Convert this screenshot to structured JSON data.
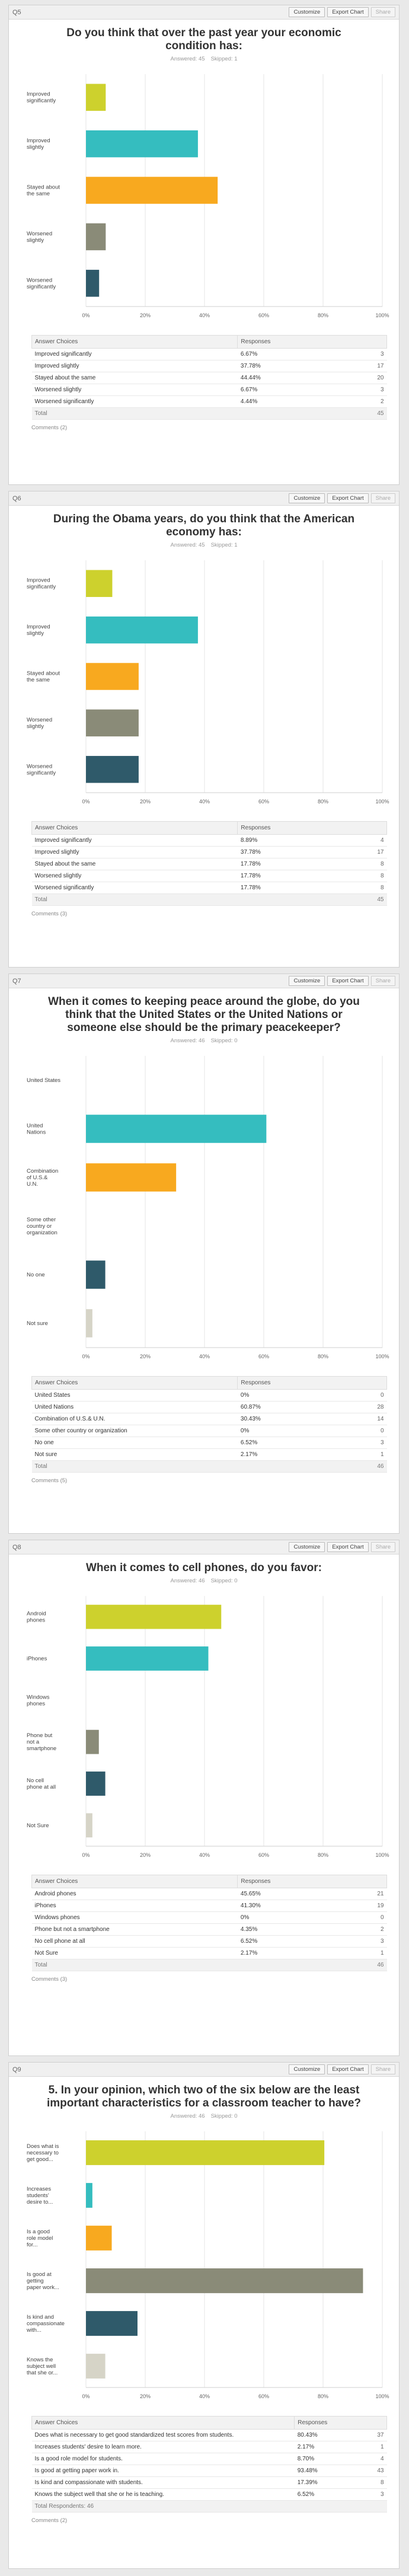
{
  "header_buttons": {
    "customize": "Customize",
    "export": "Export Chart",
    "share": "Share"
  },
  "table_headers": {
    "choice": "Answer Choices",
    "responses": "Responses"
  },
  "colors": [
    "#cdd12d",
    "#35bdbf",
    "#f8a91f",
    "#8a8b78",
    "#2f5a6a",
    "#d6d4c7"
  ],
  "questions": [
    {
      "num": "Q5",
      "title": "Do you think that over the past year your economic condition has:",
      "answered": "Answered: 45",
      "skipped": "Skipped: 1",
      "chart_labels": [
        [
          "Improved",
          "significantly"
        ],
        [
          "Improved",
          "slightly"
        ],
        [
          "Stayed about",
          "the same"
        ],
        [
          "Worsened",
          "slightly"
        ],
        [
          "Worsened",
          "significantly"
        ]
      ],
      "rows": [
        {
          "choice": "Improved significantly",
          "pct": "6.67%",
          "count": "3"
        },
        {
          "choice": "Improved slightly",
          "pct": "37.78%",
          "count": "17"
        },
        {
          "choice": "Stayed about the same",
          "pct": "44.44%",
          "count": "20"
        },
        {
          "choice": "Worsened slightly",
          "pct": "6.67%",
          "count": "3"
        },
        {
          "choice": "Worsened significantly",
          "pct": "4.44%",
          "count": "2"
        }
      ],
      "total_label": "Total",
      "total": "45",
      "comments": "Comments (2)"
    },
    {
      "num": "Q6",
      "title": "During the Obama years, do you think that the American economy has:",
      "answered": "Answered: 45",
      "skipped": "Skipped: 1",
      "chart_labels": [
        [
          "Improved",
          "significantly"
        ],
        [
          "Improved",
          "slightly"
        ],
        [
          "Stayed about",
          "the same"
        ],
        [
          "Worsened",
          "slightly"
        ],
        [
          "Worsened",
          "significantly"
        ]
      ],
      "rows": [
        {
          "choice": "Improved significantly",
          "pct": "8.89%",
          "count": "4"
        },
        {
          "choice": "Improved slightly",
          "pct": "37.78%",
          "count": "17"
        },
        {
          "choice": "Stayed about the same",
          "pct": "17.78%",
          "count": "8"
        },
        {
          "choice": "Worsened slightly",
          "pct": "17.78%",
          "count": "8"
        },
        {
          "choice": "Worsened significantly",
          "pct": "17.78%",
          "count": "8"
        }
      ],
      "total_label": "Total",
      "total": "45",
      "comments": "Comments (3)"
    },
    {
      "num": "Q7",
      "title": "When it comes to keeping peace around the globe, do you think that the United States or the United Nations or someone else should be the primary peacekeeper?",
      "answered": "Answered: 46",
      "skipped": "Skipped: 0",
      "chart_labels": [
        [
          "United States"
        ],
        [
          "United",
          "Nations"
        ],
        [
          "Combination",
          "of U.S.&",
          "U.N."
        ],
        [
          "Some other",
          "country or",
          "organization"
        ],
        [
          "No one"
        ],
        [
          "Not sure"
        ]
      ],
      "rows": [
        {
          "choice": "United States",
          "pct": "0%",
          "count": "0"
        },
        {
          "choice": "United Nations",
          "pct": "60.87%",
          "count": "28"
        },
        {
          "choice": "Combination of U.S.& U.N.",
          "pct": "30.43%",
          "count": "14"
        },
        {
          "choice": "Some other country or organization",
          "pct": "0%",
          "count": "0"
        },
        {
          "choice": "No one",
          "pct": "6.52%",
          "count": "3"
        },
        {
          "choice": "Not sure",
          "pct": "2.17%",
          "count": "1"
        }
      ],
      "total_label": "Total",
      "total": "46",
      "comments": "Comments (5)"
    },
    {
      "num": "Q8",
      "title": "When it comes to cell phones, do you favor:",
      "answered": "Answered: 46",
      "skipped": "Skipped: 0",
      "chart_labels": [
        [
          "Android",
          "phones"
        ],
        [
          "iPhones"
        ],
        [
          "Windows",
          "phones"
        ],
        [
          "Phone but",
          "not a",
          "smartphone"
        ],
        [
          "No cell",
          "phone at all"
        ],
        [
          "Not Sure"
        ]
      ],
      "rows": [
        {
          "choice": "Android phones",
          "pct": "45.65%",
          "count": "21"
        },
        {
          "choice": "iPhones",
          "pct": "41.30%",
          "count": "19"
        },
        {
          "choice": "Windows phones",
          "pct": "0%",
          "count": "0"
        },
        {
          "choice": "Phone but not a smartphone",
          "pct": "4.35%",
          "count": "2"
        },
        {
          "choice": "No cell phone at all",
          "pct": "6.52%",
          "count": "3"
        },
        {
          "choice": "Not Sure",
          "pct": "2.17%",
          "count": "1"
        }
      ],
      "total_label": "Total",
      "total": "46",
      "comments": "Comments (3)"
    },
    {
      "num": "Q9",
      "title": "5. In your opinion, which two of the six below are the least important characteristics for a classroom teacher to have?",
      "answered": "Answered: 46",
      "skipped": "Skipped: 0",
      "chart_labels": [
        [
          "Does what is",
          "necessary to",
          "get good..."
        ],
        [
          "Increases",
          "students'",
          "desire to..."
        ],
        [
          "Is a good",
          "role model",
          "for..."
        ],
        [
          "Is good at",
          "getting",
          "paper work..."
        ],
        [
          "Is kind and",
          "compassionate",
          "with..."
        ],
        [
          "Knows the",
          "subject well",
          "that she or..."
        ]
      ],
      "rows": [
        {
          "choice": "Does what is necessary to get good standardized test scores from students.",
          "pct": "80.43%",
          "count": "37"
        },
        {
          "choice": "Increases students' desire to learn more.",
          "pct": "2.17%",
          "count": "1"
        },
        {
          "choice": "Is a good role model for students.",
          "pct": "8.70%",
          "count": "4"
        },
        {
          "choice": "Is good at getting paper work in.",
          "pct": "93.48%",
          "count": "43"
        },
        {
          "choice": "Is kind and compassionate with students.",
          "pct": "17.39%",
          "count": "8"
        },
        {
          "choice": "Knows the subject well that she or he is teaching.",
          "pct": "6.52%",
          "count": "3"
        }
      ],
      "total_label": "Total Respondents: 46",
      "total": "",
      "comments": "Comments (2)"
    }
  ],
  "chart_data": [
    {
      "type": "bar",
      "orientation": "horizontal",
      "categories": [
        "Improved significantly",
        "Improved slightly",
        "Stayed about the same",
        "Worsened slightly",
        "Worsened significantly"
      ],
      "values": [
        6.67,
        37.78,
        44.44,
        6.67,
        4.44
      ],
      "xlim": [
        0,
        100
      ],
      "xticks": [
        "0%",
        "20%",
        "40%",
        "60%",
        "80%",
        "100%"
      ],
      "grid": true
    },
    {
      "type": "bar",
      "orientation": "horizontal",
      "categories": [
        "Improved significantly",
        "Improved slightly",
        "Stayed about the same",
        "Worsened slightly",
        "Worsened significantly"
      ],
      "values": [
        8.89,
        37.78,
        17.78,
        17.78,
        17.78
      ],
      "xlim": [
        0,
        100
      ],
      "xticks": [
        "0%",
        "20%",
        "40%",
        "60%",
        "80%",
        "100%"
      ],
      "grid": true
    },
    {
      "type": "bar",
      "orientation": "horizontal",
      "categories": [
        "United States",
        "United Nations",
        "Combination of U.S.& U.N.",
        "Some other country or organization",
        "No one",
        "Not sure"
      ],
      "values": [
        0,
        60.87,
        30.43,
        0,
        6.52,
        2.17
      ],
      "xlim": [
        0,
        100
      ],
      "xticks": [
        "0%",
        "20%",
        "40%",
        "60%",
        "80%",
        "100%"
      ],
      "grid": true
    },
    {
      "type": "bar",
      "orientation": "horizontal",
      "categories": [
        "Android phones",
        "iPhones",
        "Windows phones",
        "Phone but not a smartphone",
        "No cell phone at all",
        "Not Sure"
      ],
      "values": [
        45.65,
        41.3,
        0,
        4.35,
        6.52,
        2.17
      ],
      "xlim": [
        0,
        100
      ],
      "xticks": [
        "0%",
        "20%",
        "40%",
        "60%",
        "80%",
        "100%"
      ],
      "grid": true
    },
    {
      "type": "bar",
      "orientation": "horizontal",
      "categories": [
        "Does what is necessary to get good...",
        "Increases students' desire to...",
        "Is a good role model for...",
        "Is good at getting paper work...",
        "Is kind and compassionate with...",
        "Knows the subject well that she or..."
      ],
      "values": [
        80.43,
        2.17,
        8.7,
        93.48,
        17.39,
        6.52
      ],
      "xlim": [
        0,
        100
      ],
      "xticks": [
        "0%",
        "20%",
        "40%",
        "60%",
        "80%",
        "100%"
      ],
      "grid": true
    }
  ]
}
